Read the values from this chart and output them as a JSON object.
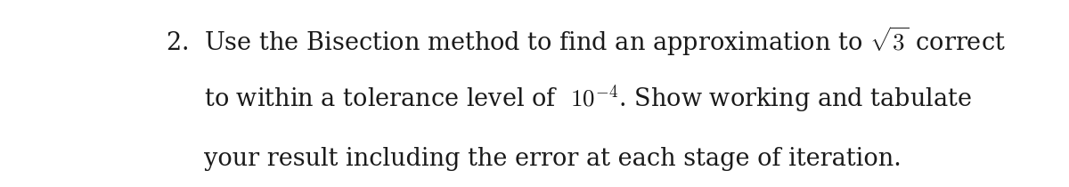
{
  "background_color": "#ffffff",
  "line1": "2.  Use the Bisection method to find an approximation to $\\sqrt{3}$ correct",
  "line2": "     to within a tolerance level of  $10^{-4}$. Show working and tabulate",
  "line3": "     your result including the error at each stage of iteration.",
  "font_size": 19.5,
  "font_color": "#1a1a1a",
  "font_family": "DejaVu Serif"
}
